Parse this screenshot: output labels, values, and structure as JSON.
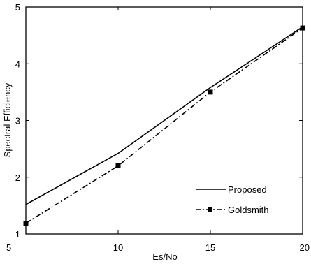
{
  "chart_data": {
    "type": "line",
    "title": "",
    "xlabel": "Es/No",
    "ylabel": "Spectral Efficiency",
    "xlim": [
      5,
      20
    ],
    "ylim": [
      1,
      5
    ],
    "xticks": [
      5,
      10,
      15,
      20
    ],
    "yticks": [
      1,
      2,
      3,
      4,
      5
    ],
    "grid": false,
    "legend_position": "bottom-right",
    "series": [
      {
        "name": "Proposed",
        "style": "solid",
        "color": "#000000",
        "x": [
          5,
          10,
          15,
          20
        ],
        "y": [
          1.52,
          2.42,
          3.58,
          4.65
        ]
      },
      {
        "name": "Goldsmith",
        "style": "dash-dot",
        "marker": "square",
        "color": "#000000",
        "x": [
          5,
          10,
          15,
          20
        ],
        "y": [
          1.19,
          2.2,
          3.5,
          4.63
        ]
      }
    ]
  }
}
